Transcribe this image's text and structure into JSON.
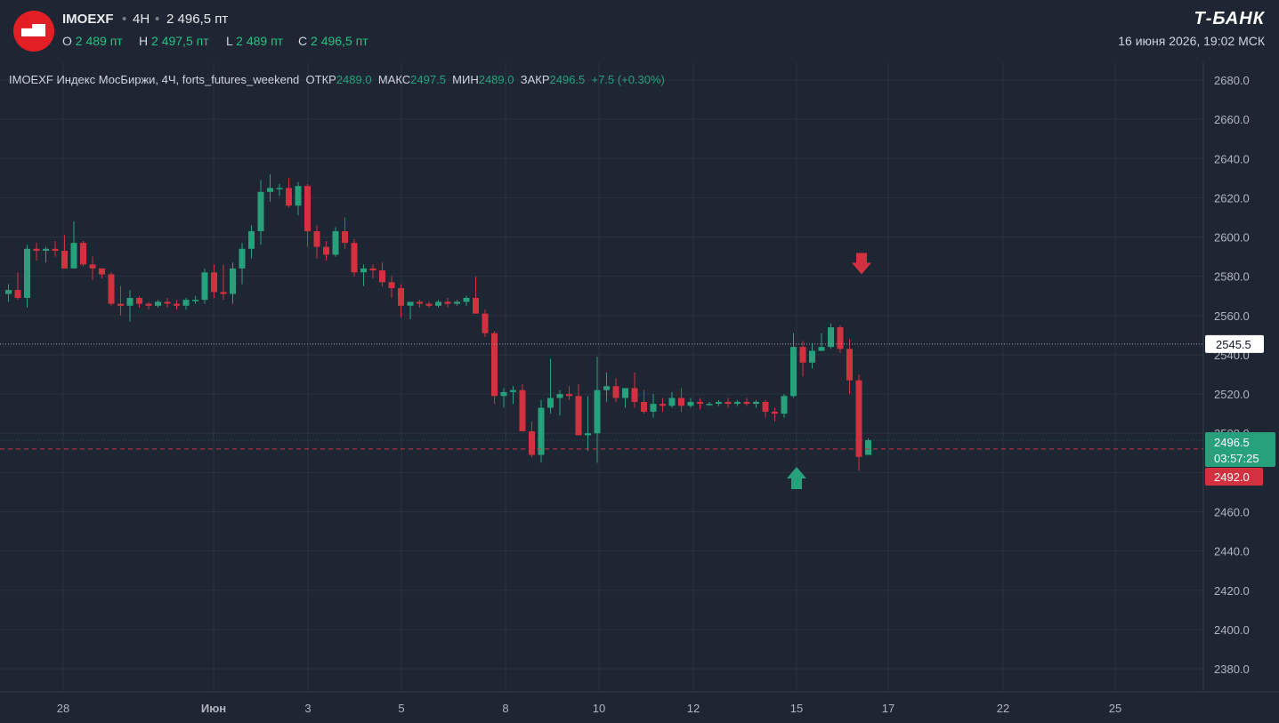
{
  "header": {
    "symbol": "IMOEXF",
    "timeframe": "4H",
    "price": "2 496,5 пт",
    "open_label": "O",
    "open_value": "2 489 пт",
    "high_label": "H",
    "high_value": "2 497,5 пт",
    "low_label": "L",
    "low_value": "2 489 пт",
    "close_label": "C",
    "close_value": "2 496,5 пт",
    "brand": "Т-БАНК",
    "datetime": "16 июня 2026, 19:02 МСК"
  },
  "legend": {
    "title": "IMOEXF Индекс МосБиржи, 4Ч, forts_futures_weekend",
    "open_label": "ОТКР",
    "open_value": "2489.0",
    "high_label": "МАКС",
    "high_value": "2497.5",
    "low_label": "МИН",
    "low_value": "2489.0",
    "close_label": "ЗАКР",
    "close_value": "2496.5",
    "change": "+7.5 (+0.30%)"
  },
  "colors": {
    "background": "#1e2633",
    "up": "#26a17b",
    "down": "#d2323f",
    "grid": "#2a3240",
    "axis_text": "#b2b5be"
  },
  "price_labels": {
    "dotted_line": "2545.5",
    "current": "2496.5",
    "countdown": "03:57:25",
    "dashed_line": "2492.0"
  },
  "chart_data": {
    "type": "candlestick",
    "ylim": [
      2370,
      2690
    ],
    "y_ticks": [
      "2380.0",
      "2400.0",
      "2420.0",
      "2440.0",
      "2460.0",
      "2480.0",
      "2500.0",
      "2520.0",
      "2540.0",
      "2560.0",
      "2580.0",
      "2600.0",
      "2620.0",
      "2640.0",
      "2660.0",
      "2680.0"
    ],
    "x_ticks": [
      "28",
      "Июн",
      "3",
      "5",
      "8",
      "10",
      "12",
      "15",
      "17",
      "22",
      "25"
    ],
    "horizontal_lines": [
      {
        "value": 2545.5,
        "style": "dotted"
      },
      {
        "value": 2492.0,
        "style": "dashed"
      }
    ],
    "markers": [
      {
        "type": "arrow-down",
        "value": 2586,
        "color": "#d2323f"
      },
      {
        "type": "arrow-up",
        "value": 2477,
        "color": "#26a17b"
      }
    ],
    "candles": [
      [
        2571,
        2576,
        2567,
        2573
      ],
      [
        2573,
        2582,
        2568,
        2569
      ],
      [
        2569,
        2596,
        2564,
        2594
      ],
      [
        2594,
        2597,
        2588,
        2593
      ],
      [
        2593,
        2595,
        2587,
        2594
      ],
      [
        2594,
        2598,
        2590,
        2593
      ],
      [
        2593,
        2601,
        2584,
        2584
      ],
      [
        2584,
        2608,
        2584,
        2597
      ],
      [
        2597,
        2598,
        2585,
        2586
      ],
      [
        2586,
        2590,
        2578,
        2584
      ],
      [
        2584,
        2584,
        2579,
        2581
      ],
      [
        2581,
        2582,
        2565,
        2566
      ],
      [
        2566,
        2575,
        2560,
        2565
      ],
      [
        2565,
        2573,
        2557,
        2569
      ],
      [
        2569,
        2570,
        2564,
        2566
      ],
      [
        2566,
        2567,
        2563,
        2565
      ],
      [
        2565,
        2568,
        2564,
        2567
      ],
      [
        2567,
        2569,
        2564,
        2566
      ],
      [
        2566,
        2568,
        2563,
        2565
      ],
      [
        2565,
        2569,
        2563,
        2568
      ],
      [
        2568,
        2570,
        2566,
        2568
      ],
      [
        2568,
        2584,
        2566,
        2582
      ],
      [
        2582,
        2586,
        2569,
        2572
      ],
      [
        2572,
        2586,
        2568,
        2571
      ],
      [
        2571,
        2587,
        2566,
        2584
      ],
      [
        2584,
        2597,
        2576,
        2594
      ],
      [
        2594,
        2606,
        2589,
        2603
      ],
      [
        2603,
        2629,
        2596,
        2623
      ],
      [
        2623,
        2632,
        2618,
        2625
      ],
      [
        2625,
        2627,
        2621,
        2625
      ],
      [
        2625,
        2630,
        2615,
        2616
      ],
      [
        2616,
        2628,
        2611,
        2626
      ],
      [
        2626,
        2627,
        2595,
        2603
      ],
      [
        2603,
        2606,
        2589,
        2595
      ],
      [
        2595,
        2598,
        2588,
        2591
      ],
      [
        2591,
        2605,
        2590,
        2603
      ],
      [
        2603,
        2610,
        2594,
        2597
      ],
      [
        2597,
        2599,
        2580,
        2582
      ],
      [
        2582,
        2586,
        2575,
        2584
      ],
      [
        2584,
        2586,
        2579,
        2583
      ],
      [
        2583,
        2587,
        2575,
        2577
      ],
      [
        2577,
        2580,
        2569,
        2574
      ],
      [
        2574,
        2576,
        2559,
        2565
      ],
      [
        2565,
        2566,
        2558,
        2567
      ],
      [
        2567,
        2568,
        2564,
        2566
      ],
      [
        2566,
        2567,
        2564,
        2565
      ],
      [
        2565,
        2568,
        2564,
        2567
      ],
      [
        2567,
        2569,
        2564,
        2566
      ],
      [
        2566,
        2568,
        2565,
        2567
      ],
      [
        2567,
        2570,
        2565,
        2569
      ],
      [
        2569,
        2580,
        2561,
        2561
      ],
      [
        2561,
        2563,
        2549,
        2551
      ],
      [
        2551,
        2552,
        2515,
        2519
      ],
      [
        2519,
        2523,
        2513,
        2521
      ],
      [
        2521,
        2524,
        2515,
        2522
      ],
      [
        2522,
        2525,
        2501,
        2501
      ],
      [
        2501,
        2506,
        2488,
        2489
      ],
      [
        2489,
        2517,
        2485,
        2513
      ],
      [
        2513,
        2538,
        2510,
        2518
      ],
      [
        2518,
        2522,
        2509,
        2520
      ],
      [
        2520,
        2524,
        2517,
        2519
      ],
      [
        2519,
        2525,
        2499,
        2499
      ],
      [
        2499,
        2519,
        2491,
        2500
      ],
      [
        2500,
        2539,
        2485,
        2522
      ],
      [
        2522,
        2531,
        2516,
        2524
      ],
      [
        2524,
        2528,
        2516,
        2518
      ],
      [
        2518,
        2522,
        2513,
        2523
      ],
      [
        2523,
        2531,
        2513,
        2516
      ],
      [
        2516,
        2522,
        2510,
        2511
      ],
      [
        2511,
        2520,
        2508,
        2515
      ],
      [
        2515,
        2518,
        2511,
        2514
      ],
      [
        2514,
        2521,
        2513,
        2518
      ],
      [
        2518,
        2523,
        2511,
        2514
      ],
      [
        2514,
        2518,
        2513,
        2516
      ],
      [
        2516,
        2518,
        2512,
        2515
      ],
      [
        2515,
        2516,
        2514,
        2515
      ],
      [
        2515,
        2517,
        2514,
        2516
      ],
      [
        2516,
        2518,
        2513,
        2515
      ],
      [
        2515,
        2517,
        2514,
        2516
      ],
      [
        2516,
        2518,
        2514,
        2515
      ],
      [
        2515,
        2517,
        2513,
        2516
      ],
      [
        2516,
        2517,
        2508,
        2511
      ],
      [
        2511,
        2513,
        2506,
        2510
      ],
      [
        2510,
        2520,
        2508,
        2519
      ],
      [
        2519,
        2551,
        2518,
        2544
      ],
      [
        2544,
        2547,
        2529,
        2536
      ],
      [
        2536,
        2546,
        2533,
        2542
      ],
      [
        2542,
        2551,
        2543,
        2544
      ],
      [
        2544,
        2556,
        2543,
        2554
      ],
      [
        2554,
        2555,
        2541,
        2543
      ],
      [
        2543,
        2548,
        2520,
        2527
      ],
      [
        2527,
        2530,
        2481,
        2488
      ],
      [
        2489,
        2497.5,
        2489,
        2496.5
      ]
    ]
  }
}
